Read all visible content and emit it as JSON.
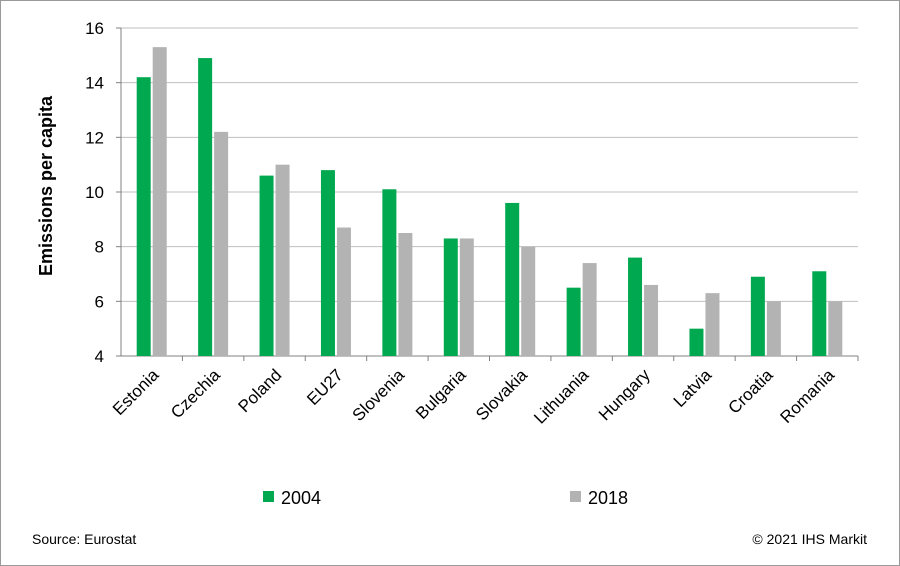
{
  "chart_data": {
    "type": "bar",
    "title": "",
    "xlabel": "",
    "ylabel": "Emissions per capita",
    "ylim": [
      4,
      16
    ],
    "yticks": [
      4,
      6,
      8,
      10,
      12,
      14,
      16
    ],
    "grid": true,
    "legend_position": "bottom",
    "categories": [
      "Estonia",
      "Czechia",
      "Poland",
      "EU27",
      "Slovenia",
      "Bulgaria",
      "Slovakia",
      "Lithuania",
      "Hungary",
      "Latvia",
      "Croatia",
      "Romania"
    ],
    "series": [
      {
        "name": "2004",
        "color": "#00a94f",
        "values": [
          14.2,
          14.9,
          10.6,
          10.8,
          10.1,
          8.3,
          9.6,
          6.5,
          7.6,
          5.0,
          6.9,
          7.1
        ]
      },
      {
        "name": "2018",
        "color": "#b3b3b3",
        "values": [
          15.3,
          12.2,
          11.0,
          8.7,
          8.5,
          8.3,
          8.0,
          7.4,
          6.6,
          6.3,
          6.0,
          6.0
        ]
      }
    ]
  },
  "footer": {
    "source": "Source: Eurostat",
    "copyright": "© 2021 IHS Markit"
  }
}
